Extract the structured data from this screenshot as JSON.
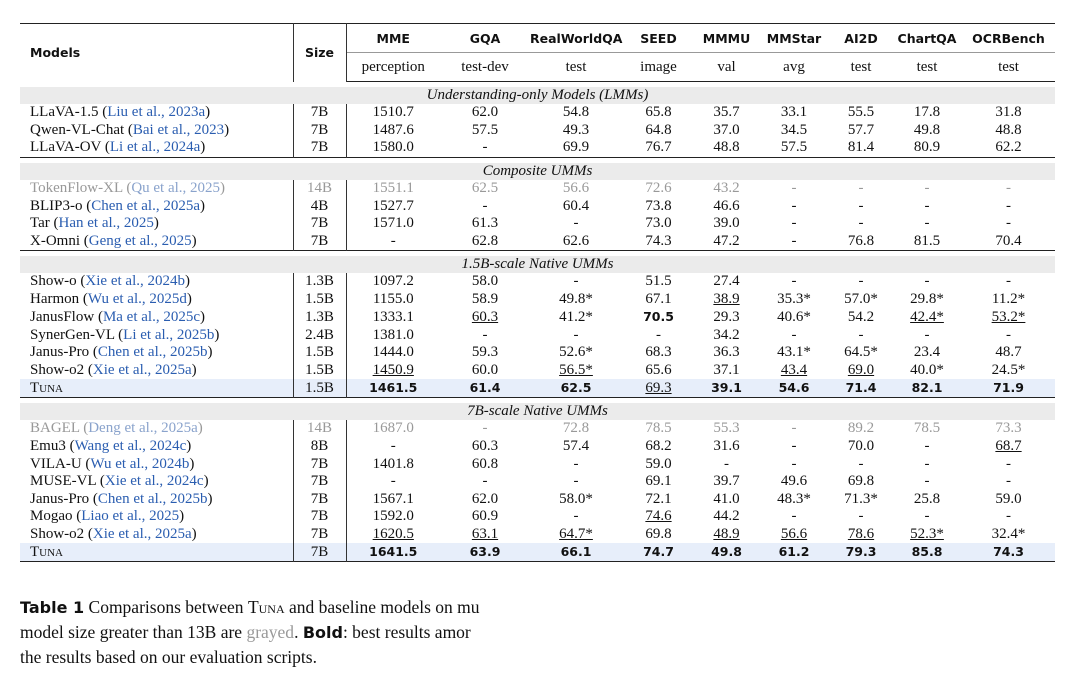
{
  "table": {
    "header": {
      "models": "Models",
      "size": "Size",
      "benchmarks": [
        {
          "name": "MME",
          "split": "perception"
        },
        {
          "name": "GQA",
          "split": "test-dev"
        },
        {
          "name": "RealWorldQA",
          "split": "test"
        },
        {
          "name": "SEED",
          "split": "image"
        },
        {
          "name": "MMMU",
          "split": "val"
        },
        {
          "name": "MMStar",
          "split": "avg"
        },
        {
          "name": "AI2D",
          "split": "test"
        },
        {
          "name": "ChartQA",
          "split": "test"
        },
        {
          "name": "OCRBench",
          "split": "test"
        }
      ]
    },
    "sections": [
      {
        "title": "Understanding-only Models (LMMs)",
        "rows": [
          {
            "model": "LLaVA-1.5",
            "cite": "Liu et al., 2023a",
            "size": "7B",
            "cells": [
              "1510.7",
              "62.0",
              "54.8",
              "65.8",
              "35.7",
              "33.1",
              "55.5",
              "17.8",
              "31.8"
            ]
          },
          {
            "model": "Qwen-VL-Chat",
            "cite": "Bai et al., 2023",
            "size": "7B",
            "cells": [
              "1487.6",
              "57.5",
              "49.3",
              "64.8",
              "37.0",
              "34.5",
              "57.7",
              "49.8",
              "48.8"
            ]
          },
          {
            "model": "LLaVA-OV",
            "cite": "Li et al., 2024a",
            "size": "7B",
            "cells": [
              "1580.0",
              "-",
              "69.9",
              "76.7",
              "48.8",
              "57.5",
              "81.4",
              "80.9",
              "62.2"
            ]
          }
        ]
      },
      {
        "title": "Composite UMMs",
        "rows": [
          {
            "model": "TokenFlow-XL",
            "cite": "Qu et al., 2025",
            "size": "14B",
            "gray": true,
            "cells": [
              "1551.1",
              "62.5",
              "56.6",
              "72.6",
              "43.2",
              "-",
              "-",
              "-",
              "-"
            ]
          },
          {
            "model": "BLIP3-o",
            "cite": "Chen et al., 2025a",
            "size": "4B",
            "cells": [
              "1527.7",
              "-",
              "60.4",
              "73.8",
              "46.6",
              "-",
              "-",
              "-",
              "-"
            ]
          },
          {
            "model": "Tar",
            "cite": "Han et al., 2025",
            "size": "7B",
            "cells": [
              "1571.0",
              "61.3",
              "-",
              "73.0",
              "39.0",
              "-",
              "-",
              "-",
              "-"
            ]
          },
          {
            "model": "X-Omni",
            "cite": "Geng et al., 2025",
            "size": "7B",
            "cells": [
              "-",
              "62.8",
              "62.6",
              "74.3",
              "47.2",
              "-",
              "76.8",
              "81.5",
              "70.4"
            ]
          }
        ]
      },
      {
        "title": "1.5B-scale Native UMMs",
        "rows": [
          {
            "model": "Show-o",
            "cite": "Xie et al., 2024b",
            "size": "1.3B",
            "cells": [
              "1097.2",
              "58.0",
              "-",
              "51.5",
              "27.4",
              "-",
              "-",
              "-",
              "-"
            ]
          },
          {
            "model": "Harmon",
            "cite": "Wu et al., 2025d",
            "size": "1.5B",
            "underline": [
              4
            ],
            "cells": [
              "1155.0",
              "58.9",
              "49.8*",
              "67.1",
              "38.9",
              "35.3*",
              "57.0*",
              "29.8*",
              "11.2*"
            ]
          },
          {
            "model": "JanusFlow",
            "cite": "Ma et al., 2025c",
            "size": "1.3B",
            "underline": [
              1,
              7,
              8
            ],
            "bold": [
              3
            ],
            "cells": [
              "1333.1",
              "60.3",
              "41.2*",
              "70.5",
              "29.3",
              "40.6*",
              "54.2",
              "42.4*",
              "53.2*"
            ]
          },
          {
            "model": "SynerGen-VL",
            "cite": "Li et al., 2025b",
            "size": "2.4B",
            "cells": [
              "1381.0",
              "-",
              "-",
              "-",
              "34.2",
              "-",
              "-",
              "-",
              "-"
            ]
          },
          {
            "model": "Janus-Pro",
            "cite": "Chen et al., 2025b",
            "size": "1.5B",
            "cells": [
              "1444.0",
              "59.3",
              "52.6*",
              "68.3",
              "36.3",
              "43.1*",
              "64.5*",
              "23.4",
              "48.7"
            ]
          },
          {
            "model": "Show-o2",
            "cite": "Xie et al., 2025a",
            "size": "1.5B",
            "underline": [
              0,
              2,
              5,
              6
            ],
            "cells": [
              "1450.9",
              "60.0",
              "56.5*",
              "65.6",
              "37.1",
              "43.4",
              "69.0",
              "40.0*",
              "24.5*"
            ]
          },
          {
            "model": "Tuna",
            "size": "1.5B",
            "ours": true,
            "underline": [
              3
            ],
            "bold": [
              0,
              1,
              2,
              4,
              5,
              6,
              7,
              8
            ],
            "cells": [
              "1461.5",
              "61.4",
              "62.5",
              "69.3",
              "39.1",
              "54.6",
              "71.4",
              "82.1",
              "71.9"
            ]
          }
        ]
      },
      {
        "title": "7B-scale Native UMMs",
        "rows": [
          {
            "model": "BAGEL",
            "cite": "Deng et al., 2025a",
            "size": "14B",
            "gray": true,
            "cells": [
              "1687.0",
              "-",
              "72.8",
              "78.5",
              "55.3",
              "-",
              "89.2",
              "78.5",
              "73.3"
            ]
          },
          {
            "model": "Emu3",
            "cite": "Wang et al., 2024c",
            "size": "8B",
            "underline": [
              8
            ],
            "cells": [
              "-",
              "60.3",
              "57.4",
              "68.2",
              "31.6",
              "-",
              "70.0",
              "-",
              "68.7"
            ]
          },
          {
            "model": "VILA-U",
            "cite": "Wu et al., 2024b",
            "size": "7B",
            "cells": [
              "1401.8",
              "60.8",
              "-",
              "59.0",
              "-",
              "-",
              "-",
              "-",
              "-"
            ]
          },
          {
            "model": "MUSE-VL",
            "cite": "Xie et al., 2024c",
            "size": "7B",
            "cells": [
              "-",
              "-",
              "-",
              "69.1",
              "39.7",
              "49.6",
              "69.8",
              "-",
              "-"
            ]
          },
          {
            "model": "Janus-Pro",
            "cite": "Chen et al., 2025b",
            "size": "7B",
            "cells": [
              "1567.1",
              "62.0",
              "58.0*",
              "72.1",
              "41.0",
              "48.3*",
              "71.3*",
              "25.8",
              "59.0"
            ]
          },
          {
            "model": "Mogao",
            "cite": "Liao et al., 2025",
            "size": "7B",
            "underline": [
              3
            ],
            "cells": [
              "1592.0",
              "60.9",
              "-",
              "74.6",
              "44.2",
              "-",
              "-",
              "-",
              "-"
            ]
          },
          {
            "model": "Show-o2",
            "cite": "Xie et al., 2025a",
            "size": "7B",
            "underline": [
              0,
              1,
              2,
              4,
              5,
              6,
              7
            ],
            "cells": [
              "1620.5",
              "63.1",
              "64.7*",
              "69.8",
              "48.9",
              "56.6",
              "78.6",
              "52.3*",
              "32.4*"
            ]
          },
          {
            "model": "Tuna",
            "size": "7B",
            "ours": true,
            "bold": [
              0,
              1,
              2,
              3,
              4,
              5,
              6,
              7,
              8
            ],
            "cells": [
              "1641.5",
              "63.9",
              "66.1",
              "74.7",
              "49.8",
              "61.2",
              "79.3",
              "85.8",
              "74.3"
            ]
          }
        ]
      }
    ]
  },
  "caption": {
    "lines": [
      [
        {
          "text": "Table 1",
          "style": "label"
        },
        {
          "text": " Comparisons between ",
          "style": "plain"
        },
        {
          "text": "Tuna",
          "style": "smallcaps"
        },
        {
          "text": " and baseline models on mu",
          "style": "plain"
        }
      ],
      [
        {
          "text": "model size greater than 13B are ",
          "style": "plain"
        },
        {
          "text": "grayed",
          "style": "gray"
        },
        {
          "text": ". ",
          "style": "plain"
        },
        {
          "text": "Bold",
          "style": "label"
        },
        {
          "text": ": best results amor",
          "style": "plain"
        }
      ],
      [
        {
          "text": "the results based on our evaluation scripts.",
          "style": "plain"
        }
      ]
    ]
  }
}
